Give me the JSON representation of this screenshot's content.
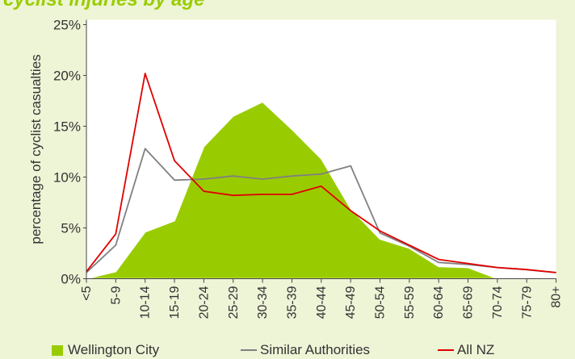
{
  "title": "cyclist injuries by age",
  "chart_data": {
    "type": "area",
    "categories": [
      "<5",
      "5-9",
      "10-14",
      "15-19",
      "20-24",
      "25-29",
      "30-34",
      "35-39",
      "40-44",
      "45-49",
      "50-54",
      "55-59",
      "60-64",
      "65-69",
      "70-74",
      "75-79",
      "80+"
    ],
    "ylabel": "percentage of cyclist casualties",
    "xlabel": "",
    "ylim": [
      0,
      25
    ],
    "yticks": [
      "0%",
      "5%",
      "10%",
      "15%",
      "20%",
      "25%"
    ],
    "grid": false,
    "legend_position": "bottom",
    "series": [
      {
        "name": "Wellington City",
        "kind": "area",
        "color": "#99cc00",
        "values": [
          0,
          0.7,
          4.6,
          5.7,
          13,
          16,
          17.4,
          14.7,
          11.8,
          6.9,
          3.9,
          3,
          1.2,
          1.1,
          0,
          0,
          0
        ]
      },
      {
        "name": "Similar Authorities",
        "kind": "line",
        "color": "#808080",
        "values": [
          0.6,
          3.3,
          12.8,
          9.7,
          9.8,
          10.1,
          9.8,
          10.1,
          10.3,
          11.1,
          4.5,
          3.2,
          1.6,
          1.4,
          1.1,
          0.9,
          0.6
        ]
      },
      {
        "name": "All NZ",
        "kind": "line",
        "color": "#e00000",
        "values": [
          0.7,
          4.4,
          20.2,
          11.6,
          8.6,
          8.2,
          8.3,
          8.3,
          9.1,
          6.7,
          4.7,
          3.3,
          1.9,
          1.5,
          1.1,
          0.9,
          0.6
        ]
      }
    ]
  }
}
